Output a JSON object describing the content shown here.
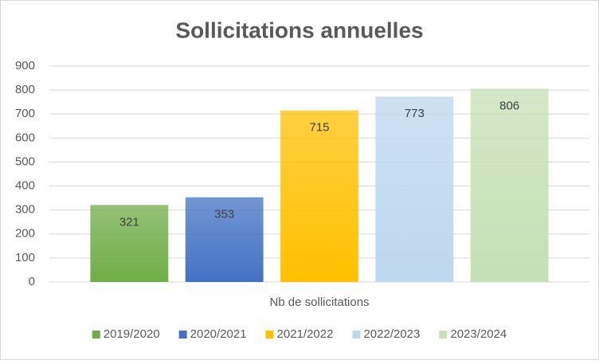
{
  "chart_data": {
    "type": "bar",
    "title": "Sollicitations annuelles",
    "categories": [
      "Nb de sollicitations"
    ],
    "series": [
      {
        "name": "2019/2020",
        "color": "#70ad47",
        "values": [
          321
        ]
      },
      {
        "name": "2020/2021",
        "color": "#4472c4",
        "values": [
          353
        ]
      },
      {
        "name": "2021/2022",
        "color": "#ffc000",
        "values": [
          715
        ]
      },
      {
        "name": "2022/2023",
        "color": "#bdd7ee",
        "values": [
          773
        ]
      },
      {
        "name": "2023/2024",
        "color": "#c5e0b4",
        "values": [
          806
        ]
      }
    ],
    "ylim": [
      0,
      900
    ],
    "yticks": [
      0,
      100,
      200,
      300,
      400,
      500,
      600,
      700,
      800,
      900
    ],
    "grid": true,
    "legend": "bottom"
  }
}
